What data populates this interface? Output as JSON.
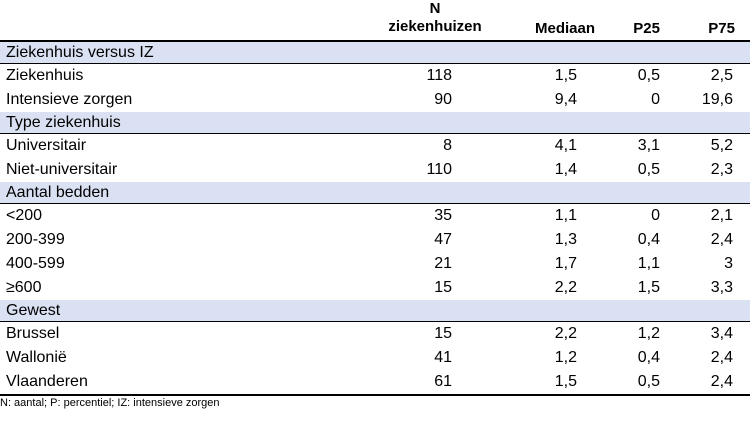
{
  "header": {
    "n_line1": "N",
    "n_line2": "ziekenhuizen",
    "median": "Mediaan",
    "p25": "P25",
    "p75": "P75"
  },
  "groups": [
    {
      "title": "Ziekenhuis versus IZ",
      "rows": [
        {
          "label": "Ziekenhuis",
          "n": "118",
          "median": "1,5",
          "p25": "0,5",
          "p75": "2,5"
        },
        {
          "label": "Intensieve zorgen",
          "n": "90",
          "median": "9,4",
          "p25": "0",
          "p75": "19,6"
        }
      ]
    },
    {
      "title": "Type ziekenhuis",
      "rows": [
        {
          "label": "Universitair",
          "n": "8",
          "median": "4,1",
          "p25": "3,1",
          "p75": "5,2"
        },
        {
          "label": "Niet-universitair",
          "n": "110",
          "median": "1,4",
          "p25": "0,5",
          "p75": "2,3"
        }
      ]
    },
    {
      "title": "Aantal bedden",
      "rows": [
        {
          "label": "<200",
          "n": "35",
          "median": "1,1",
          "p25": "0",
          "p75": "2,1"
        },
        {
          "label": "200-399",
          "n": "47",
          "median": "1,3",
          "p25": "0,4",
          "p75": "2,4"
        },
        {
          "label": "400-599",
          "n": "21",
          "median": "1,7",
          "p25": "1,1",
          "p75": "3"
        },
        {
          "label": "≥600",
          "n": "15",
          "median": "2,2",
          "p25": "1,5",
          "p75": "3,3"
        }
      ]
    },
    {
      "title": "Gewest",
      "rows": [
        {
          "label": "Brussel",
          "n": "15",
          "median": "2,2",
          "p25": "1,2",
          "p75": "3,4"
        },
        {
          "label": "Wallonië",
          "n": "41",
          "median": "1,2",
          "p25": "0,4",
          "p75": "2,4"
        },
        {
          "label": "Vlaanderen",
          "n": "61",
          "median": "1,5",
          "p25": "0,5",
          "p75": "2,4"
        }
      ]
    }
  ],
  "footnote": "N: aantal; P: percentiel; IZ: intensieve zorgen",
  "colors": {
    "group_band": "#d9e1f2"
  }
}
